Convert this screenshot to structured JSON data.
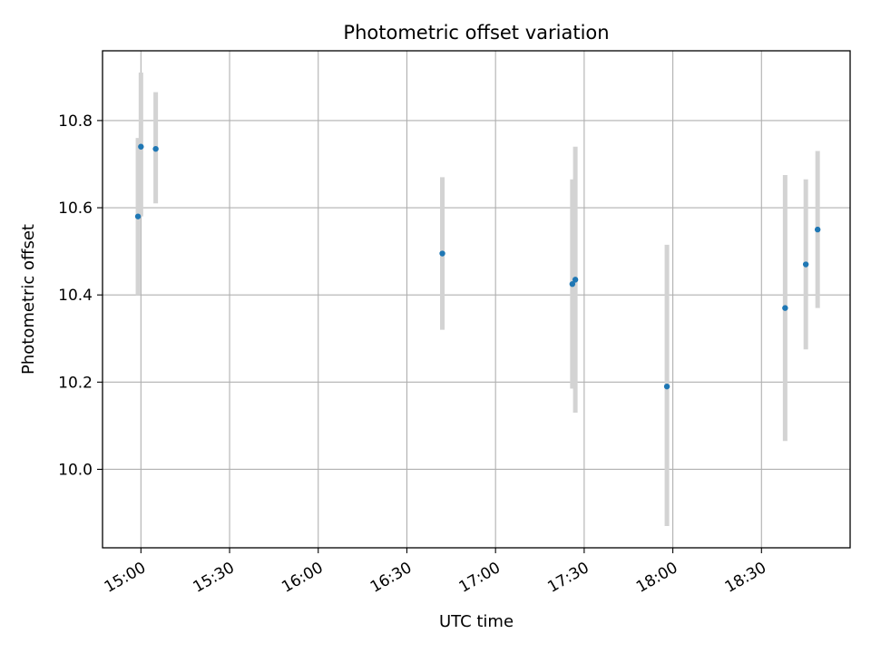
{
  "chart_data": {
    "type": "scatter",
    "title": "Photometric offset variation",
    "xlabel": "UTC time",
    "ylabel": "Photometric offset",
    "x_axis_type": "time",
    "xlim": [
      "14:47",
      "19:00"
    ],
    "ylim": [
      9.82,
      10.96
    ],
    "xticks": [
      "15:00",
      "15:30",
      "16:00",
      "16:30",
      "17:00",
      "17:30",
      "18:00",
      "18:30"
    ],
    "yticks": [
      10.0,
      10.2,
      10.4,
      10.6,
      10.8
    ],
    "yticks_labels": [
      "10.0",
      "10.2",
      "10.4",
      "10.6",
      "10.8"
    ],
    "grid": true,
    "legend": false,
    "marker_color": "#1f77b4",
    "errorbar_color": "#d3d3d3",
    "series": [
      {
        "points": [
          {
            "x": "14:59",
            "y": 10.58,
            "yerr_low": 10.4,
            "yerr_high": 10.76
          },
          {
            "x": "15:00",
            "y": 10.74,
            "yerr_low": 10.58,
            "yerr_high": 10.91
          },
          {
            "x": "15:05",
            "y": 10.735,
            "yerr_low": 10.61,
            "yerr_high": 10.865
          },
          {
            "x": "16:42",
            "y": 10.495,
            "yerr_low": 10.32,
            "yerr_high": 10.67
          },
          {
            "x": "17:26",
            "y": 10.425,
            "yerr_low": 10.185,
            "yerr_high": 10.665
          },
          {
            "x": "17:27",
            "y": 10.435,
            "yerr_low": 10.13,
            "yerr_high": 10.74
          },
          {
            "x": "17:58",
            "y": 10.19,
            "yerr_low": 9.87,
            "yerr_high": 10.515
          },
          {
            "x": "18:38",
            "y": 10.37,
            "yerr_low": 10.065,
            "yerr_high": 10.675
          },
          {
            "x": "18:45",
            "y": 10.47,
            "yerr_low": 10.275,
            "yerr_high": 10.665
          },
          {
            "x": "18:49",
            "y": 10.55,
            "yerr_low": 10.37,
            "yerr_high": 10.73
          }
        ]
      }
    ]
  }
}
